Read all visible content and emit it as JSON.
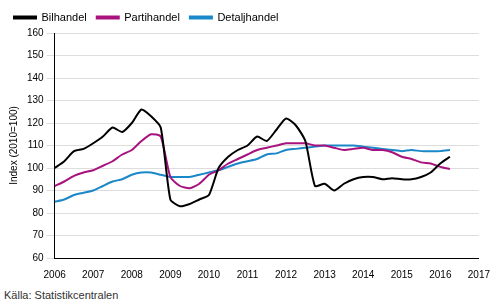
{
  "chart_data": {
    "type": "line",
    "y_label": "Index (2010=100)",
    "source": "Källa: Statistikcentralen",
    "x": [
      2006,
      2006.25,
      2006.5,
      2006.75,
      2007,
      2007.25,
      2007.5,
      2007.75,
      2008,
      2008.25,
      2008.5,
      2008.75,
      2009,
      2009.25,
      2009.5,
      2009.75,
      2010,
      2010.25,
      2010.5,
      2010.75,
      2011,
      2011.25,
      2011.5,
      2011.75,
      2012,
      2012.25,
      2012.5,
      2012.75,
      2013,
      2013.25,
      2013.5,
      2013.75,
      2014,
      2014.25,
      2014.5,
      2014.75,
      2015,
      2015.25,
      2015.5,
      2015.75,
      2016,
      2016.25
    ],
    "series": [
      {
        "name": "Bilhandel",
        "color": "#000000",
        "values": [
          100,
          103,
          107.5,
          108.5,
          111,
          114,
          118,
          116,
          120,
          126,
          123,
          118,
          86,
          83,
          84,
          86,
          88,
          100,
          105,
          108,
          110,
          114,
          112,
          117,
          122,
          119,
          112,
          92,
          93,
          90,
          93,
          95,
          96,
          96,
          95,
          95.5,
          95,
          95,
          96,
          98,
          102,
          105
        ]
      },
      {
        "name": "Partihandel",
        "color": "#a8127e",
        "values": [
          92,
          94,
          96.5,
          98,
          99,
          101,
          103,
          106,
          108,
          112,
          115,
          114,
          96,
          92,
          91,
          93,
          97,
          99,
          102,
          104,
          106,
          108,
          109,
          110,
          111,
          111,
          111,
          110,
          110,
          109,
          108,
          108.5,
          109,
          108,
          108,
          107,
          105,
          104,
          102.5,
          102,
          100.5,
          99.5
        ]
      },
      {
        "name": "Detaljhandel",
        "color": "#1a87c8",
        "values": [
          85,
          86,
          88,
          89,
          90,
          92,
          94,
          95,
          97,
          98,
          98,
          97,
          96,
          96,
          96,
          97,
          98,
          99,
          100.5,
          102,
          103,
          104,
          106,
          106.5,
          108,
          108.5,
          109,
          109.5,
          110,
          110,
          110,
          110,
          109.5,
          109,
          108.5,
          108,
          107.5,
          108,
          107.5,
          107.5,
          107.5,
          108
        ]
      }
    ],
    "xlim": [
      2006,
      2017
    ],
    "xticks": [
      2006,
      2007,
      2008,
      2009,
      2010,
      2011,
      2012,
      2013,
      2014,
      2015,
      2016,
      2017
    ],
    "ylim": [
      60,
      160
    ],
    "yticks": [
      60,
      70,
      80,
      90,
      100,
      110,
      120,
      130,
      140,
      150,
      160
    ],
    "grid": true,
    "legend": "upper left"
  }
}
